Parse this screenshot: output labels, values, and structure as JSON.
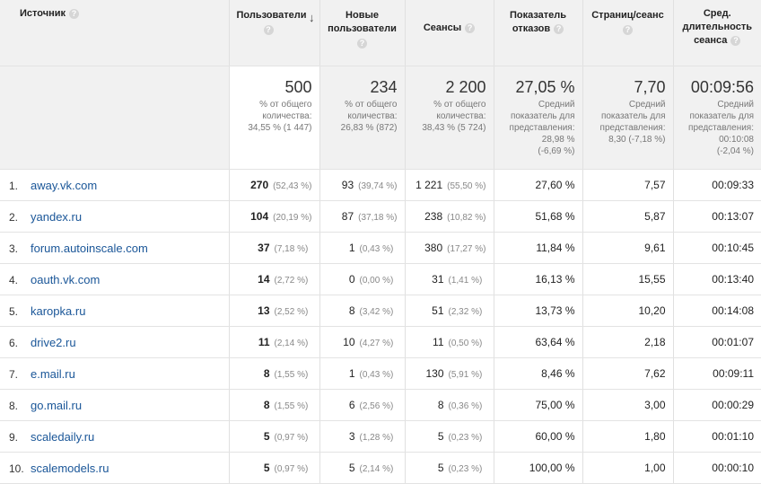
{
  "headers": {
    "source": "Источник",
    "users": "Пользователи",
    "new_users": "Новые пользователи",
    "sessions": "Сеансы",
    "bounce": "Показатель отказов",
    "pages": "Страниц/сеанс",
    "duration": "Сред. длительность сеанса"
  },
  "help_glyph": "?",
  "sort_glyph": "↓",
  "totals": {
    "users": {
      "value": "500",
      "l1": "% от общего",
      "l2": "количества:",
      "l3": "34,55 % (1 447)"
    },
    "new_users": {
      "value": "234",
      "l1": "% от общего",
      "l2": "количества:",
      "l3": "26,83 % (872)"
    },
    "sessions": {
      "value": "2 200",
      "l1": "% от общего",
      "l2": "количества:",
      "l3": "38,43 % (5 724)"
    },
    "bounce": {
      "value": "27,05 %",
      "l1": "Средний",
      "l2": "показатель для",
      "l3": "представления:",
      "l4": "28,98 %",
      "l5": "(-6,69 %)"
    },
    "pages": {
      "value": "7,70",
      "l1": "Средний",
      "l2": "показатель для",
      "l3": "представления:",
      "l4": "8,30 (-7,18 %)"
    },
    "duration": {
      "value": "00:09:56",
      "l1": "Средний",
      "l2": "показатель для",
      "l3": "представления:",
      "l4": "00:10:08",
      "l5": "(-2,04 %)"
    }
  },
  "rows": [
    {
      "n": "1.",
      "src": "away.vk.com",
      "users": "270",
      "users_pct": "(52,43 %)",
      "new": "93",
      "new_pct": "(39,74 %)",
      "sess": "1 221",
      "sess_pct": "(55,50 %)",
      "bounce": "27,60 %",
      "pages": "7,57",
      "dur": "00:09:33"
    },
    {
      "n": "2.",
      "src": "yandex.ru",
      "users": "104",
      "users_pct": "(20,19 %)",
      "new": "87",
      "new_pct": "(37,18 %)",
      "sess": "238",
      "sess_pct": "(10,82 %)",
      "bounce": "51,68 %",
      "pages": "5,87",
      "dur": "00:13:07"
    },
    {
      "n": "3.",
      "src": "forum.autoinscale.com",
      "users": "37",
      "users_pct": "(7,18 %)",
      "new": "1",
      "new_pct": "(0,43 %)",
      "sess": "380",
      "sess_pct": "(17,27 %)",
      "bounce": "11,84 %",
      "pages": "9,61",
      "dur": "00:10:45"
    },
    {
      "n": "4.",
      "src": "oauth.vk.com",
      "users": "14",
      "users_pct": "(2,72 %)",
      "new": "0",
      "new_pct": "(0,00 %)",
      "sess": "31",
      "sess_pct": "(1,41 %)",
      "bounce": "16,13 %",
      "pages": "15,55",
      "dur": "00:13:40"
    },
    {
      "n": "5.",
      "src": "karopka.ru",
      "users": "13",
      "users_pct": "(2,52 %)",
      "new": "8",
      "new_pct": "(3,42 %)",
      "sess": "51",
      "sess_pct": "(2,32 %)",
      "bounce": "13,73 %",
      "pages": "10,20",
      "dur": "00:14:08"
    },
    {
      "n": "6.",
      "src": "drive2.ru",
      "users": "11",
      "users_pct": "(2,14 %)",
      "new": "10",
      "new_pct": "(4,27 %)",
      "sess": "11",
      "sess_pct": "(0,50 %)",
      "bounce": "63,64 %",
      "pages": "2,18",
      "dur": "00:01:07"
    },
    {
      "n": "7.",
      "src": "e.mail.ru",
      "users": "8",
      "users_pct": "(1,55 %)",
      "new": "1",
      "new_pct": "(0,43 %)",
      "sess": "130",
      "sess_pct": "(5,91 %)",
      "bounce": "8,46 %",
      "pages": "7,62",
      "dur": "00:09:11"
    },
    {
      "n": "8.",
      "src": "go.mail.ru",
      "users": "8",
      "users_pct": "(1,55 %)",
      "new": "6",
      "new_pct": "(2,56 %)",
      "sess": "8",
      "sess_pct": "(0,36 %)",
      "bounce": "75,00 %",
      "pages": "3,00",
      "dur": "00:00:29"
    },
    {
      "n": "9.",
      "src": "scaledaily.ru",
      "users": "5",
      "users_pct": "(0,97 %)",
      "new": "3",
      "new_pct": "(1,28 %)",
      "sess": "5",
      "sess_pct": "(0,23 %)",
      "bounce": "60,00 %",
      "pages": "1,80",
      "dur": "00:01:10"
    },
    {
      "n": "10.",
      "src": "scalemodels.ru",
      "users": "5",
      "users_pct": "(0,97 %)",
      "new": "5",
      "new_pct": "(2,14 %)",
      "sess": "5",
      "sess_pct": "(0,23 %)",
      "bounce": "100,00 %",
      "pages": "1,00",
      "dur": "00:00:10"
    }
  ]
}
